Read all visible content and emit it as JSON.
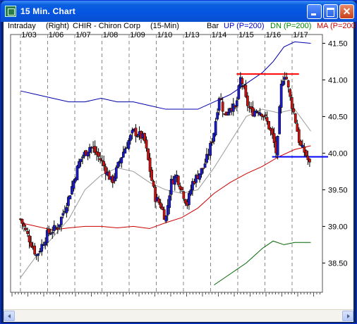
{
  "window": {
    "title": "15 Min. Chart"
  },
  "header": {
    "mode": "Intraday",
    "scale_side": "(Right)",
    "symbol": "CHIR - Chiron Corp",
    "interval": "(15-Min)",
    "style": "Bar",
    "up_label": "UP (P=200)",
    "dn_label": "DN (P=200)",
    "ma_label": "MA (P=200",
    "colors": {
      "up": "#0000cc",
      "dn": "#008800",
      "ma": "#cc0000"
    }
  },
  "chart_data": {
    "type": "candlestick",
    "x_dates": [
      "1/03",
      "1/06",
      "1/07",
      "1/08",
      "1/09",
      "1/10",
      "1/13",
      "1/14",
      "1/15",
      "1/16",
      "1/17"
    ],
    "y_ticks": [
      41.5,
      41.0,
      40.5,
      40.0,
      39.5,
      39.0,
      38.5
    ],
    "y_tick_labels": [
      "41.50",
      "41.00",
      "40.50",
      "40.00",
      "39.50",
      "39.00",
      "38.50"
    ],
    "ylim": [
      38.1,
      41.62
    ],
    "resistance_line": 41.08,
    "support_line": 39.95,
    "close_path": [
      [
        0,
        39.1
      ],
      [
        3,
        38.6
      ],
      [
        5,
        38.9
      ],
      [
        7,
        39.0
      ],
      [
        9,
        39.4
      ],
      [
        11,
        39.9
      ],
      [
        13,
        40.1
      ],
      [
        15,
        39.9
      ],
      [
        17,
        39.6
      ],
      [
        19,
        40.0
      ],
      [
        21,
        40.3
      ],
      [
        23,
        40.2
      ],
      [
        24,
        39.8
      ],
      [
        25,
        39.4
      ],
      [
        26,
        39.3
      ],
      [
        27,
        39.1
      ],
      [
        28,
        39.6
      ],
      [
        29,
        39.7
      ],
      [
        31,
        39.3
      ],
      [
        32,
        39.6
      ],
      [
        34,
        39.8
      ],
      [
        35,
        40.0
      ],
      [
        36,
        40.3
      ],
      [
        37,
        40.8
      ],
      [
        38,
        40.5
      ],
      [
        39,
        40.65
      ],
      [
        40,
        40.6
      ],
      [
        41,
        41.05
      ],
      [
        42,
        40.7
      ],
      [
        43,
        40.55
      ],
      [
        44,
        40.6
      ],
      [
        45,
        40.55
      ],
      [
        46,
        40.4
      ],
      [
        47,
        40.2
      ],
      [
        47.7,
        39.95
      ],
      [
        48,
        40.4
      ],
      [
        48.6,
        41.0
      ],
      [
        49.3,
        41.1
      ],
      [
        50,
        40.8
      ],
      [
        51,
        40.5
      ],
      [
        51.5,
        40.3
      ],
      [
        52,
        40.1
      ],
      [
        53,
        40.0
      ],
      [
        54,
        39.8
      ]
    ],
    "series": [
      {
        "name": "UP (P=200)",
        "values": [
          [
            0,
            40.85
          ],
          [
            3,
            40.8
          ],
          [
            6,
            40.75
          ],
          [
            9,
            40.7
          ],
          [
            12,
            40.7
          ],
          [
            15,
            40.75
          ],
          [
            18,
            40.7
          ],
          [
            21,
            40.7
          ],
          [
            24,
            40.65
          ],
          [
            27,
            40.6
          ],
          [
            30,
            40.6
          ],
          [
            33,
            40.6
          ],
          [
            36,
            40.7
          ],
          [
            39,
            40.8
          ],
          [
            42,
            40.95
          ],
          [
            45,
            41.1
          ],
          [
            47,
            41.25
          ],
          [
            49,
            41.45
          ],
          [
            51,
            41.52
          ],
          [
            54,
            41.5
          ]
        ]
      },
      {
        "name": "DN (P=200)",
        "values": [
          [
            36,
            38.2
          ],
          [
            39,
            38.35
          ],
          [
            42,
            38.5
          ],
          [
            45,
            38.7
          ],
          [
            47,
            38.8
          ],
          [
            49,
            38.75
          ],
          [
            51,
            38.78
          ],
          [
            54,
            38.78
          ]
        ]
      },
      {
        "name": "MA (P=200",
        "values": [
          [
            0,
            39.05
          ],
          [
            3,
            39.0
          ],
          [
            6,
            38.95
          ],
          [
            9,
            38.98
          ],
          [
            12,
            39.0
          ],
          [
            15,
            39.0
          ],
          [
            18,
            38.98
          ],
          [
            21,
            39.0
          ],
          [
            24,
            38.97
          ],
          [
            27,
            39.05
          ],
          [
            30,
            39.12
          ],
          [
            33,
            39.25
          ],
          [
            36,
            39.45
          ],
          [
            39,
            39.6
          ],
          [
            42,
            39.72
          ],
          [
            45,
            39.82
          ],
          [
            48,
            39.95
          ],
          [
            51,
            40.05
          ],
          [
            54,
            40.1
          ]
        ]
      },
      {
        "values": [
          [
            0,
            38.3
          ],
          [
            3,
            38.6
          ],
          [
            6,
            38.85
          ],
          [
            9,
            39.1
          ],
          [
            12,
            39.5
          ],
          [
            15,
            39.7
          ],
          [
            18,
            39.8
          ],
          [
            21,
            39.75
          ],
          [
            24,
            39.6
          ],
          [
            27,
            39.5
          ],
          [
            30,
            39.45
          ],
          [
            33,
            39.5
          ],
          [
            36,
            39.8
          ],
          [
            39,
            40.15
          ],
          [
            42,
            40.5
          ],
          [
            45,
            40.6
          ],
          [
            48,
            40.55
          ],
          [
            51,
            40.6
          ],
          [
            54,
            40.3
          ]
        ]
      }
    ]
  }
}
